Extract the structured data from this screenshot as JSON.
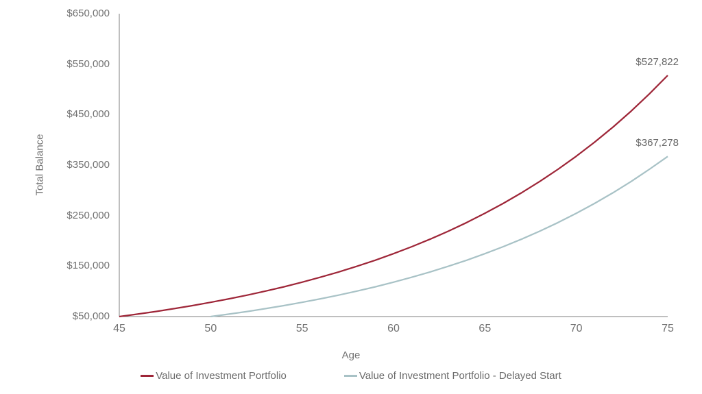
{
  "chart_data": {
    "type": "line",
    "title": "",
    "xlabel": "Age",
    "ylabel": "Total Balance",
    "xlim": [
      45,
      75
    ],
    "ylim": [
      50000,
      650000
    ],
    "grid": false,
    "legend_position": "bottom",
    "axis_color": "#7f7f7f",
    "tick_text_color": "#717171",
    "label_text_color": "#666666",
    "y_ticks": [
      {
        "value": 50000,
        "label": "$50,000"
      },
      {
        "value": 150000,
        "label": "$150,000"
      },
      {
        "value": 250000,
        "label": "$250,000"
      },
      {
        "value": 350000,
        "label": "$350,000"
      },
      {
        "value": 450000,
        "label": "$450,000"
      },
      {
        "value": 550000,
        "label": "$550,000"
      },
      {
        "value": 650000,
        "label": "$650,000"
      }
    ],
    "x_ticks": [
      {
        "value": 45,
        "label": "45"
      },
      {
        "value": 50,
        "label": "50"
      },
      {
        "value": 55,
        "label": "55"
      },
      {
        "value": 60,
        "label": "60"
      },
      {
        "value": 65,
        "label": "65"
      },
      {
        "value": 70,
        "label": "70"
      },
      {
        "value": 75,
        "label": "75"
      }
    ],
    "series": [
      {
        "name": "Value of Investment Portfolio",
        "color": "#9e2638",
        "end_label": "$527,822",
        "end_value": 527822,
        "x": [
          45,
          46,
          47,
          48,
          49,
          50,
          51,
          52,
          53,
          54,
          55,
          56,
          57,
          58,
          59,
          60,
          61,
          62,
          63,
          64,
          65,
          66,
          67,
          68,
          69,
          70,
          71,
          72,
          73,
          74,
          75
        ],
        "values": [
          50000,
          54881,
          60113,
          65722,
          71735,
          78181,
          85091,
          92499,
          100440,
          108953,
          118079,
          127862,
          138349,
          149591,
          161643,
          174562,
          188411,
          203258,
          219174,
          236236,
          254526,
          274133,
          295152,
          317684,
          341838,
          367731,
          395489,
          425245,
          457144,
          491339,
          527822
        ]
      },
      {
        "name": "Value of Investment Portfolio - Delayed Start",
        "color": "#a8c2c6",
        "end_label": "$367,278",
        "end_value": 367278,
        "x": [
          50,
          51,
          52,
          53,
          54,
          55,
          56,
          57,
          58,
          59,
          60,
          61,
          62,
          63,
          64,
          65,
          66,
          67,
          68,
          69,
          70,
          71,
          72,
          73,
          74,
          75
        ],
        "values": [
          50000,
          54881,
          60113,
          65722,
          71735,
          78181,
          85091,
          92499,
          100440,
          108953,
          118079,
          127862,
          138349,
          149591,
          161643,
          174562,
          188411,
          203258,
          219174,
          236236,
          254526,
          274133,
          295152,
          317684,
          341838,
          367278
        ]
      }
    ]
  }
}
